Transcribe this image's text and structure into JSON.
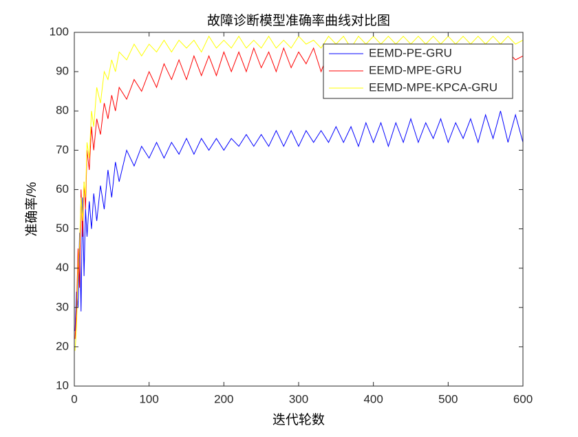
{
  "chart_data": {
    "type": "line",
    "title": "故障诊断模型准确率曲线对比图",
    "x_label": "迭代轮数",
    "y_label": "准确率/%",
    "x": [
      1,
      3,
      5,
      7,
      9,
      11,
      13,
      15,
      17,
      20,
      23,
      26,
      30,
      35,
      40,
      45,
      50,
      55,
      60,
      70,
      80,
      90,
      100,
      110,
      120,
      130,
      140,
      150,
      160,
      170,
      180,
      190,
      200,
      210,
      220,
      230,
      240,
      250,
      260,
      270,
      280,
      290,
      300,
      310,
      320,
      330,
      340,
      350,
      360,
      370,
      380,
      390,
      400,
      410,
      420,
      430,
      440,
      450,
      460,
      470,
      480,
      490,
      500,
      510,
      520,
      530,
      540,
      550,
      560,
      570,
      580,
      590,
      600
    ],
    "series": [
      {
        "name": "EEMD-PE-GRU",
        "color": "#0000ff",
        "values": [
          24,
          34,
          30,
          49,
          29,
          58,
          38,
          55,
          48,
          57,
          50,
          59,
          52,
          61,
          55,
          65,
          58,
          67,
          62,
          70,
          66,
          71,
          68,
          72,
          68,
          72,
          69,
          73,
          69,
          73,
          70,
          73,
          70,
          73,
          71,
          74,
          71,
          74,
          71,
          75,
          71,
          75,
          71,
          75,
          72,
          75,
          72,
          76,
          72,
          76,
          71,
          77,
          72,
          77,
          71,
          77,
          72,
          78,
          72,
          77,
          73,
          78,
          72,
          77,
          73,
          78,
          72,
          79,
          73,
          80,
          72,
          79,
          72
        ]
      },
      {
        "name": "EEMD-MPE-GRU",
        "color": "#ff0000",
        "values": [
          22,
          30,
          45,
          35,
          60,
          48,
          62,
          55,
          70,
          65,
          76,
          70,
          78,
          74,
          82,
          78,
          84,
          80,
          86,
          83,
          88,
          85,
          90,
          86,
          92,
          88,
          93,
          88,
          94,
          89,
          94,
          89,
          95,
          90,
          95,
          90,
          96,
          91,
          95,
          90,
          96,
          91,
          95,
          92,
          96,
          90,
          95,
          92,
          96,
          91,
          95,
          92,
          96,
          92,
          95,
          93,
          96,
          92,
          95,
          93,
          96,
          92,
          95,
          93,
          96,
          92,
          95,
          93,
          96,
          92,
          95,
          93,
          94
        ]
      },
      {
        "name": "EEMD-MPE-KPCA-GRU",
        "color": "#ffff00",
        "values": [
          19,
          25,
          40,
          46,
          58,
          52,
          62,
          58,
          72,
          68,
          80,
          76,
          86,
          82,
          90,
          88,
          93,
          90,
          95,
          93,
          97,
          94,
          97,
          95,
          98,
          95,
          98,
          96,
          98,
          95,
          99,
          96,
          98,
          96,
          99,
          96,
          98,
          96,
          99,
          96,
          98,
          96,
          99,
          97,
          98,
          96,
          99,
          97,
          99,
          96,
          99,
          97,
          99,
          97,
          99,
          97,
          99,
          97,
          99,
          97,
          99,
          97,
          99,
          97,
          99,
          97,
          99,
          97,
          99,
          97,
          99,
          97,
          98
        ]
      }
    ],
    "xlim": [
      0,
      600
    ],
    "xticks": [
      0,
      100,
      200,
      300,
      400,
      500,
      600
    ],
    "ylim": [
      10,
      100
    ],
    "yticks": [
      10,
      20,
      30,
      40,
      50,
      60,
      70,
      80,
      90,
      100
    ],
    "grid": false,
    "legend": "upper right"
  }
}
